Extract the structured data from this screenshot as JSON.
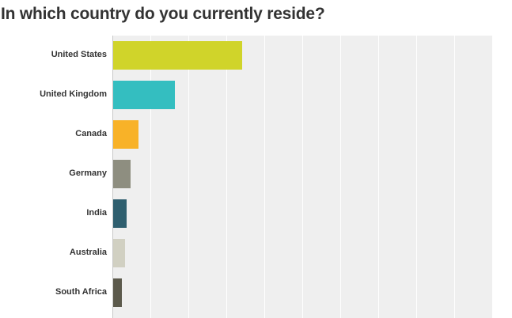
{
  "chart_data": {
    "type": "bar",
    "orientation": "horizontal",
    "title": "In which country do you currently reside?",
    "categories": [
      "United States",
      "United Kingdom",
      "Canada",
      "Germany",
      "India",
      "Australia",
      "South Africa"
    ],
    "values": [
      34,
      16.3,
      6.7,
      4.6,
      3.5,
      3.2,
      2.3
    ],
    "colors": [
      "#d0d42a",
      "#34bec0",
      "#f8b228",
      "#8e8e80",
      "#2f5f6f",
      "#d1d0c2",
      "#5c5a4c"
    ],
    "xlabel": "",
    "ylabel": "",
    "xlim": [
      0,
      100
    ],
    "unit": "%",
    "grid": true,
    "grid_step": 10,
    "legend": "none"
  }
}
